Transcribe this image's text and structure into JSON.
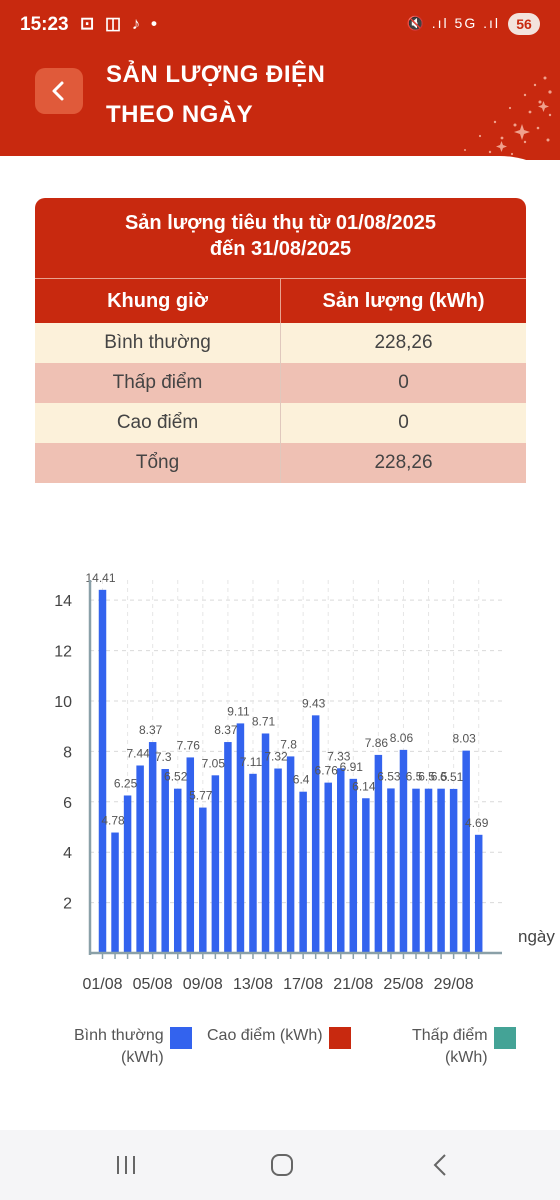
{
  "status": {
    "time": "15:23",
    "left_icons": "⊡ ◫ ♪ •",
    "right_icons": "🔇 .ıl 5G .ıl",
    "battery": "56"
  },
  "header": {
    "title_line1": "SẢN LƯỢNG ĐIỆN",
    "title_line2": "THEO NGÀY"
  },
  "table": {
    "title_line1": "Sản lượng tiêu thụ từ 01/08/2025",
    "title_line2": "đến 31/08/2025",
    "col1": "Khung giờ",
    "col2": "Sản lượng (kWh)",
    "rows": [
      {
        "label": "Bình thường",
        "value": "228,26"
      },
      {
        "label": "Thấp điểm",
        "value": "0"
      },
      {
        "label": "Cao điểm",
        "value": "0"
      },
      {
        "label": "Tổng",
        "value": "228,26"
      }
    ]
  },
  "chart_data": {
    "type": "bar",
    "xlabel": "ngày",
    "ylim": [
      0,
      14.8
    ],
    "yticks": [
      2,
      4,
      6,
      8,
      10,
      12,
      14
    ],
    "grid": true,
    "legend_position": "bottom",
    "x_tick_labels": [
      "01/08",
      "05/08",
      "09/08",
      "13/08",
      "17/08",
      "21/08",
      "25/08",
      "29/08"
    ],
    "x_tick_index": [
      0,
      4,
      8,
      12,
      16,
      20,
      24,
      28
    ],
    "series": [
      {
        "name": "Bình thường (kWh)",
        "color": "#3363ee",
        "values": [
          14.41,
          4.78,
          6.25,
          7.44,
          8.37,
          7.3,
          6.52,
          7.76,
          5.77,
          7.05,
          8.37,
          9.11,
          7.11,
          8.71,
          7.32,
          7.8,
          6.4,
          9.43,
          6.76,
          7.33,
          6.91,
          6.14,
          7.86,
          6.53,
          8.06,
          6.52,
          6.52,
          6.52,
          6.51,
          8.03,
          4.69
        ],
        "labels": [
          "14.41",
          "4.78",
          "6.25",
          "7.44",
          "8.37",
          "7.3",
          "6.52",
          "7.76",
          "5.77",
          "7.05",
          "8.37",
          "9.11",
          "7.11",
          "8.71",
          "7.32",
          "7.8",
          "6.4",
          "9.43",
          "6.76",
          "7.33",
          "6.91",
          "6.14",
          "7.86",
          "6.53",
          "8.06",
          "6.5",
          "6.5",
          "6.5",
          "6.51",
          "8.03",
          "4.69"
        ]
      },
      {
        "name": "Cao điểm (kWh)",
        "color": "#c8290f",
        "values": []
      },
      {
        "name": "Thấp điểm (kWh)",
        "color": "#44a396",
        "values": []
      }
    ]
  },
  "legend": {
    "normal_line1": "Bình thường",
    "normal_line2": "(kWh)",
    "peak": "Cao điểm (kWh)",
    "low_line1": "Thấp điểm",
    "low_line2": "(kWh)"
  }
}
